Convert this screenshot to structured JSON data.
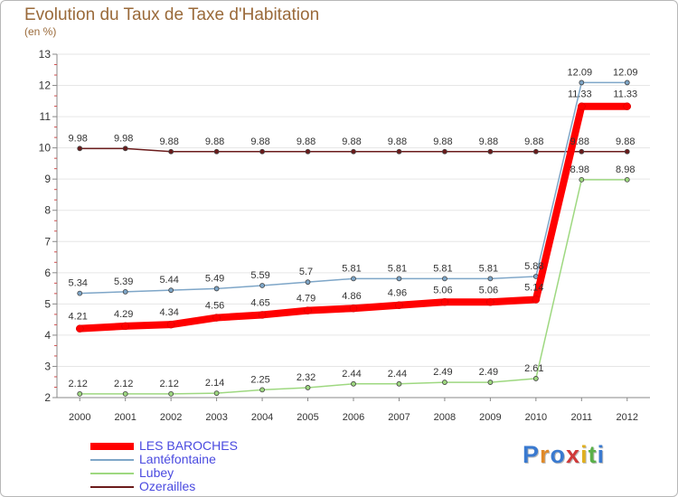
{
  "header": {
    "title": "Evolution du Taux de Taxe d'Habitation",
    "subtitle": "(en %)"
  },
  "brand": {
    "chars": [
      "P",
      "r",
      "o",
      "x",
      "i",
      "t",
      "i"
    ],
    "colors": [
      "#3a7ad0",
      "#e08a2a",
      "#3a7ad0",
      "#d03a3a",
      "#e0b020",
      "#5ab04a",
      "#3a7ad0"
    ]
  },
  "chart_data": {
    "type": "line",
    "title": "Evolution du Taux de Taxe d'Habitation",
    "ylabel": "(en %)",
    "xlabel": "",
    "ylim": [
      2,
      13
    ],
    "y_ticks": [
      2,
      3,
      4,
      5,
      6,
      7,
      8,
      9,
      10,
      11,
      12,
      13
    ],
    "categories": [
      "2000",
      "2001",
      "2002",
      "2003",
      "2004",
      "2005",
      "2006",
      "2007",
      "2008",
      "2009",
      "2010",
      "2011",
      "2012"
    ],
    "series": [
      {
        "name": "Ozerailles",
        "color": "#6b1b1b",
        "width": 1.5,
        "marker": 4,
        "values": [
          9.98,
          9.98,
          9.88,
          9.88,
          9.88,
          9.88,
          9.88,
          9.88,
          9.88,
          9.88,
          9.88,
          9.88,
          9.88
        ],
        "labels": [
          "9.98",
          "9.98",
          "9.88",
          "9.88",
          "9.88",
          "9.88",
          "9.88",
          "9.88",
          "9.88",
          "9.88",
          "9.88",
          "9.88",
          "9.88"
        ]
      },
      {
        "name": "Lantéfontaine",
        "color": "#7ea6c8",
        "width": 1.5,
        "marker": 4,
        "values": [
          5.34,
          5.39,
          5.44,
          5.49,
          5.59,
          5.7,
          5.81,
          5.81,
          5.81,
          5.81,
          5.88,
          12.09,
          12.09
        ],
        "labels": [
          "5.34",
          "5.39",
          "5.44",
          "5.49",
          "5.59",
          "5.7",
          "5.81",
          "5.81",
          "5.81",
          "5.81",
          "5.88",
          "12.09",
          "12.09"
        ]
      },
      {
        "name": "Lubey",
        "color": "#9ed880",
        "width": 1.5,
        "marker": 4,
        "values": [
          2.12,
          2.12,
          2.12,
          2.14,
          2.25,
          2.32,
          2.44,
          2.44,
          2.49,
          2.49,
          2.61,
          8.98,
          8.98
        ],
        "labels": [
          "2.12",
          "2.12",
          "2.12",
          "2.14",
          "2.25",
          "2.32",
          "2.44",
          "2.44",
          "2.49",
          "2.49",
          "2.61",
          "8.98",
          "8.98"
        ]
      },
      {
        "name": "LES BAROCHES",
        "color": "#ff0000",
        "width": 8,
        "marker": 7,
        "values": [
          4.21,
          4.29,
          4.34,
          4.56,
          4.65,
          4.79,
          4.86,
          4.96,
          5.06,
          5.06,
          5.14,
          11.33,
          11.33
        ],
        "labels": [
          "4.21",
          "4.29",
          "4.34",
          "4.56",
          "4.65",
          "4.79",
          "4.86",
          "4.96",
          "5.06",
          "5.06",
          "5.14",
          "11.33",
          "11.33"
        ]
      }
    ],
    "legend": [
      {
        "name": "LES BAROCHES",
        "color": "#ff0000",
        "thick": true
      },
      {
        "name": "Lantéfontaine",
        "color": "#7ea6c8",
        "thick": false
      },
      {
        "name": "Lubey",
        "color": "#9ed880",
        "thick": false
      },
      {
        "name": "Ozerailles",
        "color": "#6b1b1b",
        "thick": false
      }
    ]
  }
}
